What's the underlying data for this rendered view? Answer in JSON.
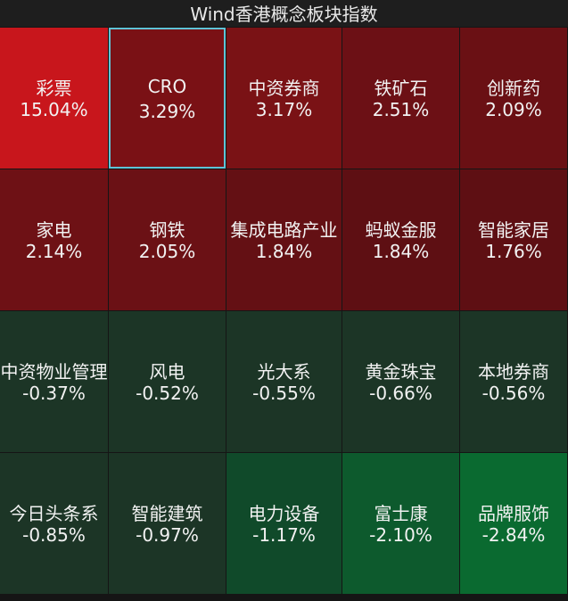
{
  "title": "Wind香港概念板块指数",
  "tiles": [
    {
      "name": "彩票",
      "change": "15.04%",
      "color": "#c8161c"
    },
    {
      "name": "CRO",
      "change": "3.29%",
      "color": "#7a1115",
      "selected": true
    },
    {
      "name": "中资券商",
      "change": "3.17%",
      "color": "#7a1215"
    },
    {
      "name": "铁矿石",
      "change": "2.51%",
      "color": "#6c1015"
    },
    {
      "name": "创新药",
      "change": "2.09%",
      "color": "#6a1014"
    },
    {
      "name": "家电",
      "change": "2.14%",
      "color": "#6e1115"
    },
    {
      "name": "钢铁",
      "change": "2.05%",
      "color": "#6b1115"
    },
    {
      "name": "集成电路产业",
      "change": "1.84%",
      "color": "#641014"
    },
    {
      "name": "蚂蚁金服",
      "change": "1.84%",
      "color": "#5e0f13"
    },
    {
      "name": "智能家居",
      "change": "1.76%",
      "color": "#5e0f13"
    },
    {
      "name": "中资物业管理",
      "change": "-0.37%",
      "color": "#1c3526"
    },
    {
      "name": "风电",
      "change": "-0.52%",
      "color": "#1c3526"
    },
    {
      "name": "光大系",
      "change": "-0.55%",
      "color": "#1c3526"
    },
    {
      "name": "黄金珠宝",
      "change": "-0.66%",
      "color": "#1c3526"
    },
    {
      "name": "本地券商",
      "change": "-0.56%",
      "color": "#1c3526"
    },
    {
      "name": "今日头条系",
      "change": "-0.85%",
      "color": "#1c3526"
    },
    {
      "name": "智能建筑",
      "change": "-0.97%",
      "color": "#1c3526"
    },
    {
      "name": "电力设备",
      "change": "-1.17%",
      "color": "#104a2a"
    },
    {
      "name": "富士康",
      "change": "-2.10%",
      "color": "#0d5a2d"
    },
    {
      "name": "品牌服饰",
      "change": "-2.84%",
      "color": "#0a6a30"
    }
  ]
}
